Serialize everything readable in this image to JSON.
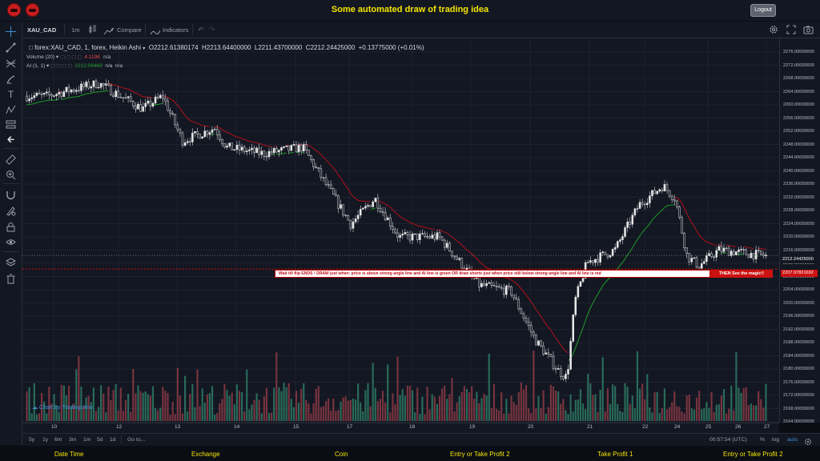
{
  "app": {
    "title": "Some automated draw of trading idea",
    "logout_label": "Logout"
  },
  "toolbar": {
    "symbol": "XAU_CAD",
    "interval": "1m",
    "compare_label": "Compare",
    "indicators_label": "Indicators"
  },
  "legend": {
    "title": "forex:XAU_CAD, 1, forex, Heikin Ashi",
    "open": "O2212.61380174",
    "high": "H2213.64400000",
    "low": "L2211.43700000",
    "close": "C2212.24425000",
    "change": "+0.13775000 (+0.01%)",
    "volume_label": "Volume (20)",
    "volume_value": "4.119K",
    "volume_na": "n/a",
    "ai_label": "AI (1, 1)",
    "ai_value": "2212.09469",
    "ai_na1": "n/a",
    "ai_na2": "n/a"
  },
  "annotation": {
    "text": "Wait till flip ENDS  !  DRAW just when:  price is above strong angle line and AI line is green        OR        draw shorts just when price still below strong angle line and AI line is red",
    "tag": "THEN See the magic!!",
    "line_price": "2207.97821692"
  },
  "price_scale": {
    "labels": [
      "2276.00000000",
      "2272.00000000",
      "2268.00000000",
      "2264.00000000",
      "2260.00000000",
      "2256.00000000",
      "2252.00000000",
      "2248.00000000",
      "2244.00000000",
      "2240.00000000",
      "2236.00000000",
      "2232.00000000",
      "2228.00000000",
      "2224.00000000",
      "2220.00000000",
      "2216.00000000",
      "2212.00000000",
      "2208.00000000",
      "2204.00000000",
      "2200.00000000",
      "2196.00000000",
      "2192.00000000",
      "2188.00000000",
      "2184.00000000",
      "2180.00000000",
      "2176.00000000",
      "2172.00000000",
      "2168.00000000",
      "2164.00000000"
    ],
    "current_price": "2212.24425000"
  },
  "time_axis": {
    "labels": [
      "10",
      "12",
      "13",
      "14",
      "15",
      "17",
      "18",
      "19",
      "20",
      "21",
      "22",
      "24",
      "25",
      "26",
      "27"
    ]
  },
  "bottom_bar": {
    "ranges": [
      "5y",
      "1y",
      "6m",
      "3m",
      "1m",
      "5d",
      "1d"
    ],
    "goto_label": "Go to...",
    "clock": "00:57:54 (UTC)",
    "percent_label": "%",
    "log_label": "log",
    "auto_label": "auto"
  },
  "watermark": "Chart by TradingView",
  "footer": {
    "items": [
      "Date Time",
      "Exchange",
      "Coin",
      "Entry or Take Profit 2",
      "Take Profit 1",
      "Entry or Take Profit 2"
    ]
  },
  "colors": {
    "up": "#d8d8d8",
    "down": "#ffffff",
    "ai_green": "#1f9e2a",
    "ai_red": "#b3121b",
    "vol_up": "#2e7a64",
    "vol_down": "#8a3a44",
    "title": "#f5e600"
  },
  "chart_data": {
    "type": "candlestick",
    "title": "forex:XAU_CAD, 1, forex, Heikin Ashi",
    "ylim": [
      2162,
      2278
    ],
    "x_categories": [
      "10",
      "12",
      "13",
      "14",
      "15",
      "17",
      "18",
      "19",
      "20",
      "21",
      "22",
      "24",
      "25",
      "26",
      "27"
    ],
    "price_path": [
      {
        "x": "10",
        "y": 2262
      },
      {
        "x": "12",
        "y": 2256
      },
      {
        "x": "13",
        "y": 2249
      },
      {
        "x": "14",
        "y": 2250
      },
      {
        "x": "15",
        "y": 2242
      },
      {
        "x": "17",
        "y": 2223
      },
      {
        "x": "18",
        "y": 2216
      },
      {
        "x": "19",
        "y": 2214
      },
      {
        "x": "20",
        "y": 2203
      },
      {
        "x": "21",
        "y": 2176
      },
      {
        "x": "22",
        "y": 2212
      },
      {
        "x": "24",
        "y": 2234
      },
      {
        "x": "25",
        "y": 2210
      },
      {
        "x": "26",
        "y": 2213
      },
      {
        "x": "27",
        "y": 2212
      }
    ],
    "annotation_line_value": 2207.97821692
  }
}
